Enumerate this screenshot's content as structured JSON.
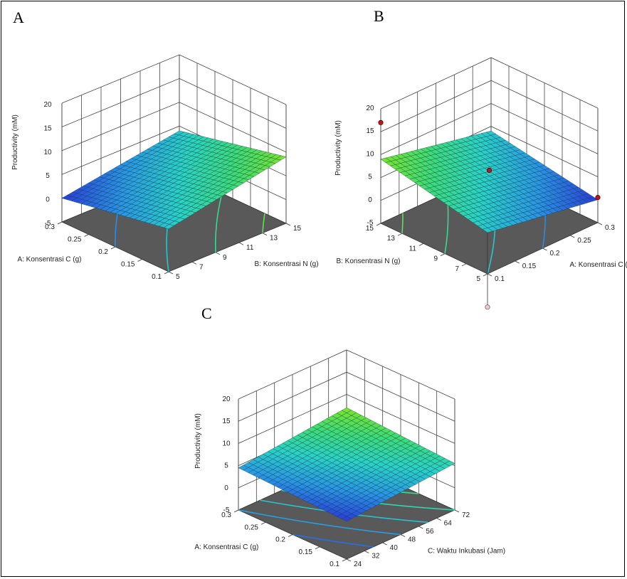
{
  "chart_data": [
    {
      "type": "surface",
      "panel": "A",
      "xlabel": "A: Konsentrasi C (g)",
      "ylabel": "B: Konsentrasi N (g)",
      "zlabel": "Productivity (mM)",
      "x_ticks": [
        "0.1",
        "0.15",
        "0.2",
        "0.25",
        "0.3"
      ],
      "y_ticks": [
        "5",
        "7",
        "9",
        "11",
        "13",
        "15"
      ],
      "z_ticks": [
        "-5",
        "0",
        "5",
        "10",
        "15",
        "20"
      ],
      "xlim": [
        0.1,
        0.3
      ],
      "ylim": [
        5,
        15
      ],
      "zlim": [
        -5,
        20
      ],
      "surface_corners": {
        "x_high_y_low": 0,
        "x_low_y_low": 4,
        "x_high_y_high": 4,
        "x_low_y_high": 9
      },
      "contour_levels": [
        2,
        4,
        6,
        8
      ]
    },
    {
      "type": "surface",
      "panel": "B",
      "xlabel": "B: Konsentrasi N (g)",
      "ylabel": "A: Konsentrasi C (g)",
      "zlabel": "Productivity (mM)",
      "x_ticks": [
        "5",
        "7",
        "9",
        "11",
        "13",
        "15"
      ],
      "y_ticks": [
        "0.1",
        "0.15",
        "0.2",
        "0.25",
        "0.3"
      ],
      "z_ticks": [
        "-5",
        "0",
        "5",
        "10",
        "15",
        "20"
      ],
      "xlim": [
        5,
        15
      ],
      "ylim": [
        0.1,
        0.3
      ],
      "zlim": [
        -5,
        20
      ],
      "surface_corners": {
        "x_high_y_low": 9,
        "x_low_y_low": 4,
        "x_high_y_high": 4,
        "x_low_y_high": 0
      },
      "design_points": [
        {
          "x": 15,
          "y": 0.1,
          "z": 17
        },
        {
          "x": 10,
          "y": 0.2,
          "z": 6.5
        },
        {
          "x": 5,
          "y": 0.3,
          "z": 0.5
        },
        {
          "x": 5,
          "y": 0.1,
          "z": -9
        }
      ],
      "contour_levels": [
        2,
        4,
        6,
        8
      ]
    },
    {
      "type": "surface",
      "panel": "C",
      "xlabel": "A: Konsentrasi C (g)",
      "ylabel": "C: Waktu Inkubasi (Jam)",
      "zlabel": "Productivity (mM)",
      "x_ticks": [
        "0.1",
        "0.15",
        "0.2",
        "0.25",
        "0.3"
      ],
      "y_ticks": [
        "24",
        "32",
        "40",
        "48",
        "56",
        "64",
        "72"
      ],
      "z_ticks": [
        "-5",
        "0",
        "5",
        "10",
        "15",
        "20"
      ],
      "xlim": [
        0.1,
        0.3
      ],
      "ylim": [
        24,
        72
      ],
      "zlim": [
        -5,
        20
      ],
      "surface_corners": {
        "x_high_y_low": 4.5,
        "x_low_y_low": 3.5,
        "x_high_y_high": 7,
        "x_low_y_high": 5.5
      },
      "contour_levels": [
        4,
        4.5,
        5,
        5.5,
        6,
        6.5
      ]
    }
  ]
}
